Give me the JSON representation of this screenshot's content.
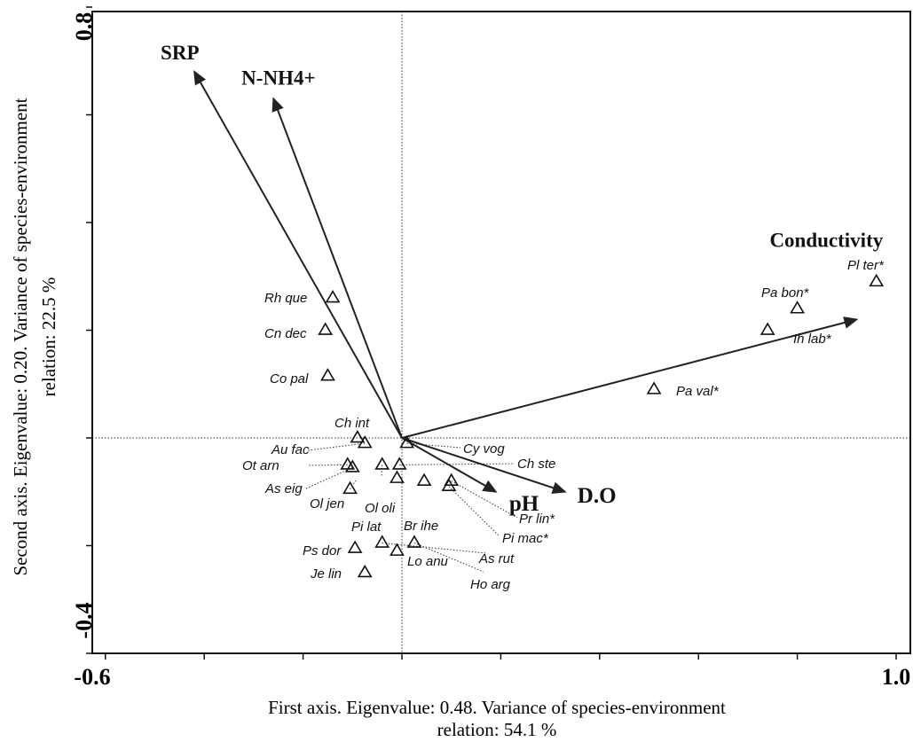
{
  "chart_data": {
    "type": "scatter",
    "subtype": "ordination-biplot",
    "xlabel_line1": "First axis. Eigenvalue: 0.48. Variance of species-environment",
    "xlabel_line2": "relation: 54.1 %",
    "ylabel_line1": "Second axis. Eigenvalue: 0.20. Variance of species-environment",
    "ylabel_line2": "relation: 22.5 %",
    "xlim": [
      -0.6,
      1.0
    ],
    "ylim": [
      -0.4,
      0.8
    ],
    "x_tick_labels": [
      {
        "value": -0.6,
        "label": "-0.6"
      },
      {
        "value": 1.0,
        "label": "1.0"
      }
    ],
    "y_tick_labels": [
      {
        "value": 0.8,
        "label": "0.8"
      },
      {
        "value": -0.4,
        "label": "-0.4"
      }
    ],
    "grid": false,
    "reference_lines": {
      "x": 0,
      "y": 0
    },
    "arrows": [
      {
        "label": "SRP",
        "x": -0.42,
        "y": 0.68
      },
      {
        "label": "N-NH4+",
        "x": -0.26,
        "y": 0.63
      },
      {
        "label": "Conductivity",
        "x": 0.92,
        "y": 0.22
      },
      {
        "label": "pH",
        "x": 0.19,
        "y": -0.1
      },
      {
        "label": "D.O",
        "x": 0.33,
        "y": -0.1
      }
    ],
    "species": [
      {
        "label": "Pl ter*",
        "x": 0.96,
        "y": 0.29
      },
      {
        "label": "Pa bon*",
        "x": 0.8,
        "y": 0.24
      },
      {
        "label": "Ih lab*",
        "x": 0.74,
        "y": 0.2
      },
      {
        "label": "Pa val*",
        "x": 0.51,
        "y": 0.09
      },
      {
        "label": "Rh que",
        "x": -0.14,
        "y": 0.26
      },
      {
        "label": "Cn dec",
        "x": -0.155,
        "y": 0.2
      },
      {
        "label": "Co pal",
        "x": -0.15,
        "y": 0.115
      },
      {
        "label": "Ch int",
        "x": -0.09,
        "y": 0.0
      },
      {
        "label": "Au fac",
        "x": -0.075,
        "y": -0.01
      },
      {
        "label": "Ot arn",
        "x": -0.11,
        "y": -0.05
      },
      {
        "label": "As eig",
        "x": -0.1,
        "y": -0.055
      },
      {
        "label": "Ol jen",
        "x": -0.105,
        "y": -0.095
      },
      {
        "label": "Ol oli",
        "x": -0.04,
        "y": -0.05
      },
      {
        "label": "Cy vog",
        "x": 0.01,
        "y": -0.01
      },
      {
        "label": "Ch ste",
        "x": -0.005,
        "y": -0.05
      },
      {
        "label": "Pi lat",
        "x": -0.01,
        "y": -0.075
      },
      {
        "label": "Br ihe",
        "x": 0.045,
        "y": -0.08
      },
      {
        "label": "Pr lin*",
        "x": 0.1,
        "y": -0.08
      },
      {
        "label": "Pi mac*",
        "x": 0.095,
        "y": -0.09
      },
      {
        "label": "Ps dor",
        "x": -0.095,
        "y": -0.205
      },
      {
        "label": "Lo anu",
        "x": -0.01,
        "y": -0.21
      },
      {
        "label": "Je lin",
        "x": -0.075,
        "y": -0.25
      },
      {
        "label": "As rut",
        "x": -0.04,
        "y": -0.195
      },
      {
        "label": "Ho arg",
        "x": 0.025,
        "y": -0.195
      }
    ]
  }
}
